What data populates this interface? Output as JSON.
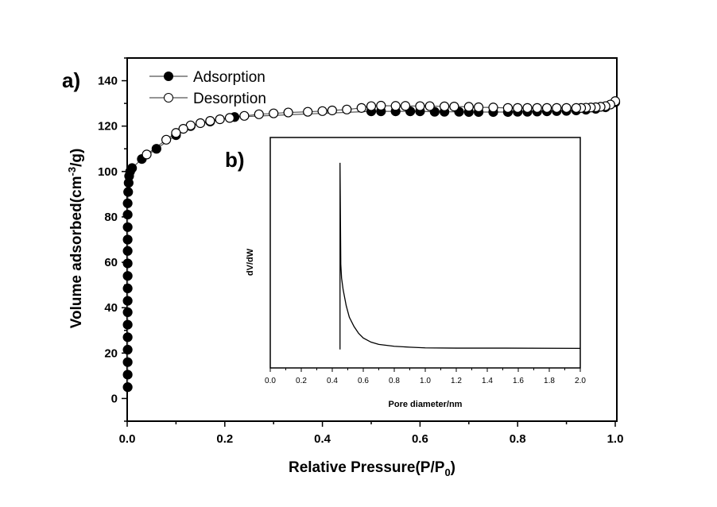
{
  "chart_data": [
    {
      "panel_label": "a)",
      "type": "scatter",
      "xlabel": "Relative Pressure(P/P",
      "xlabel_sub": "0",
      "xlabel_end": ")",
      "ylabel": "Volume adsorbed(cm",
      "ylabel_sup": "-3",
      "ylabel_end": "/g)",
      "xlim": [
        0,
        1.0
      ],
      "ylim": [
        -10,
        150
      ],
      "xticks": [
        "0.0",
        "0.2",
        "0.4",
        "0.6",
        "0.8",
        "1.0"
      ],
      "xtick_values": [
        0,
        0.2,
        0.4,
        0.6,
        0.8,
        1.0
      ],
      "yticks": [
        "0",
        "20",
        "40",
        "60",
        "80",
        "100",
        "120",
        "140"
      ],
      "ytick_values": [
        0,
        20,
        40,
        60,
        80,
        100,
        120,
        140
      ],
      "legend_position": "top-left",
      "series": [
        {
          "name": "Adsorption",
          "marker": "filled-circle",
          "x": [
            0.001,
            0.001,
            0.001,
            0.001,
            0.001,
            0.001,
            0.001,
            0.001,
            0.001,
            0.001,
            0.001,
            0.001,
            0.001,
            0.001,
            0.001,
            0.001,
            0.002,
            0.003,
            0.004,
            0.006,
            0.01,
            0.03,
            0.06,
            0.1,
            0.13,
            0.17,
            0.22,
            0.5,
            0.52,
            0.55,
            0.58,
            0.6,
            0.63,
            0.65,
            0.68,
            0.7,
            0.72,
            0.75,
            0.78,
            0.8,
            0.82,
            0.84,
            0.86,
            0.88,
            0.9,
            0.92,
            0.94,
            0.96,
            0.98,
            1.0
          ],
          "y": [
            5,
            10.5,
            16,
            21.5,
            27,
            32.5,
            38,
            43,
            48.5,
            54,
            59.5,
            65,
            70,
            75.5,
            81,
            86,
            91,
            95,
            98,
            100,
            101.5,
            105.5,
            110,
            116,
            120,
            122,
            124,
            126.5,
            126.5,
            126.5,
            126.5,
            126.5,
            126.3,
            126.3,
            126.3,
            126.2,
            126.2,
            126.2,
            126.2,
            126.3,
            126.3,
            126.4,
            126.5,
            126.6,
            126.7,
            126.9,
            127.2,
            127.6,
            128.3,
            130.5
          ]
        },
        {
          "name": "Desorption",
          "marker": "open-circle",
          "x": [
            1.0,
            0.99,
            0.98,
            0.97,
            0.96,
            0.95,
            0.94,
            0.93,
            0.92,
            0.9,
            0.88,
            0.86,
            0.84,
            0.82,
            0.8,
            0.78,
            0.75,
            0.72,
            0.7,
            0.67,
            0.65,
            0.62,
            0.6,
            0.57,
            0.55,
            0.52,
            0.5,
            0.48,
            0.45,
            0.42,
            0.4,
            0.37,
            0.33,
            0.3,
            0.27,
            0.24,
            0.21,
            0.19,
            0.17,
            0.15,
            0.13,
            0.115,
            0.1,
            0.08,
            0.04
          ],
          "y": [
            131,
            129.5,
            128.8,
            128.5,
            128.3,
            128.2,
            128.1,
            128,
            128,
            128,
            128,
            128,
            128,
            128,
            128,
            128,
            128.2,
            128.3,
            128.5,
            128.6,
            128.7,
            128.8,
            128.8,
            128.9,
            128.9,
            129,
            128.8,
            128,
            127.3,
            126.9,
            126.6,
            126.3,
            126,
            125.6,
            125.2,
            124.5,
            123.6,
            123,
            122.3,
            121.3,
            120.3,
            118.8,
            117,
            114,
            107.5
          ]
        }
      ]
    },
    {
      "panel_label": "b)",
      "type": "line",
      "xlabel": "Pore diameter/nm",
      "ylabel": "dV/dW",
      "xlim": [
        0,
        2.0
      ],
      "ylim": [
        0,
        1
      ],
      "xticks": [
        "0.0",
        "0.2",
        "0.4",
        "0.6",
        "0.8",
        "1.0",
        "1.2",
        "1.4",
        "1.6",
        "1.8",
        "2.0"
      ],
      "xtick_values": [
        0,
        0.2,
        0.4,
        0.6,
        0.8,
        1.0,
        1.2,
        1.4,
        1.6,
        1.8,
        2.0
      ],
      "series": [
        {
          "name": "dV/dW",
          "x": [
            0.45,
            0.45,
            0.455,
            0.46,
            0.47,
            0.49,
            0.51,
            0.54,
            0.57,
            0.6,
            0.65,
            0.7,
            0.8,
            0.9,
            1.0,
            1.2,
            1.5,
            2.0
          ],
          "y": [
            0.08,
            0.89,
            0.45,
            0.39,
            0.34,
            0.27,
            0.22,
            0.18,
            0.15,
            0.13,
            0.112,
            0.102,
            0.094,
            0.09,
            0.087,
            0.086,
            0.086,
            0.085
          ]
        }
      ]
    }
  ]
}
